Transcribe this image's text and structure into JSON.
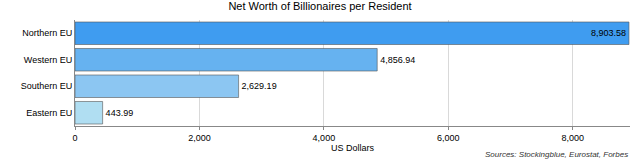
{
  "chart_data": {
    "type": "bar",
    "orientation": "horizontal",
    "title": "Net Worth of Billionaires per Resident",
    "x_label": "US Dollars",
    "annotations": [
      "Sources: Stockingblue, Eurostat, Forbes"
    ],
    "categories": [
      "Northern EU",
      "Western EU",
      "Southern EU",
      "Eastern EU"
    ],
    "values": [
      8903.58,
      4856.94,
      2629.19,
      443.99
    ],
    "value_labels": [
      "8,903.58",
      "4,856.94",
      "2,629.19",
      "443.99"
    ],
    "colors": [
      "#3f9cf0",
      "#66b2f0",
      "#8cc6f2",
      "#b0def2"
    ],
    "data_labels": true,
    "xlim": [
      0,
      8920
    ],
    "xticks": [
      0,
      {
        "value": 2000,
        "label": "2,000"
      },
      {
        "value": 4000,
        "label": "4,000"
      },
      {
        "value": 6000,
        "label": "6,000"
      },
      {
        "value": 8000,
        "label": "8,000"
      }
    ],
    "grid": true
  }
}
